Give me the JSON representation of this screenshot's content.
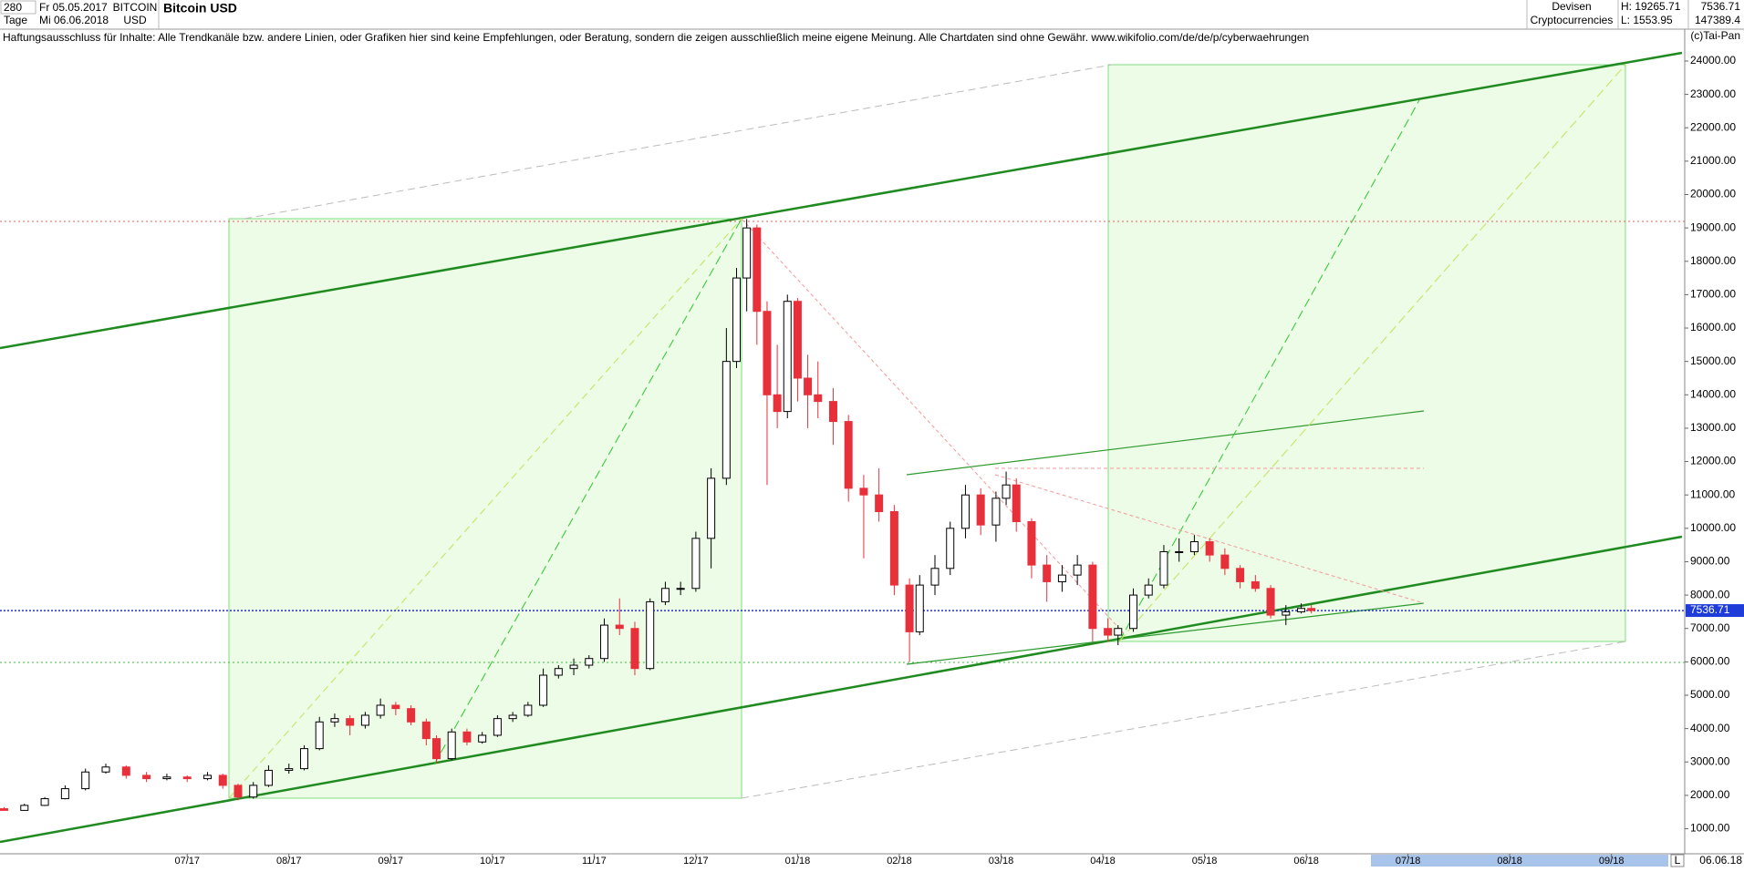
{
  "chart_data": {
    "type": "candlestick",
    "title": "Bitcoin USD",
    "toolbar": {
      "interval": "280",
      "unit": "Tage",
      "from": "Fr 05.05.2017",
      "to": "Mi 06.06.2018"
    },
    "symbol": "BITCOIN",
    "currency": "USD",
    "market": "Devisen",
    "category": "Cryptocurrencies",
    "high_label": "H: 19265.71",
    "low_label": "L: 1553.95",
    "volume": "147389.4",
    "disclaimer": "Haftungsausschluss für Inhalte: Alle Trendkanäle bzw. andere Linien, oder Grafiken hier sind keine Empfehlungen, oder Beratung, sondern die zeigen ausschließlich meine eigene Meinung. Alle Chartdaten sind ohne Gewähr.  www.wikifolio.com/de/de/p/cyberwaehrungen",
    "copyright": "(c)Tai-Pan",
    "date_label": "06.06.18",
    "scale_label": "L",
    "last_price": 7536.71,
    "xlim": [
      -1.84,
      14.72
    ],
    "ylim": [
      250,
      24900
    ],
    "xticks": [
      {
        "value": 0,
        "label": "07/17"
      },
      {
        "value": 1,
        "label": "08/17"
      },
      {
        "value": 2,
        "label": "09/17"
      },
      {
        "value": 3,
        "label": "10/17"
      },
      {
        "value": 4,
        "label": "11/17"
      },
      {
        "value": 5,
        "label": "12/17"
      },
      {
        "value": 6,
        "label": "01/18"
      },
      {
        "value": 7,
        "label": "02/18"
      },
      {
        "value": 8,
        "label": "03/18"
      },
      {
        "value": 9,
        "label": "04/18"
      },
      {
        "value": 10,
        "label": "05/18"
      },
      {
        "value": 11,
        "label": "06/18"
      },
      {
        "value": 12,
        "label": "07/18"
      },
      {
        "value": 13,
        "label": "08/18"
      },
      {
        "value": 14,
        "label": "09/18"
      }
    ],
    "yticks": [
      {
        "value": 1000,
        "label": "1000.00"
      },
      {
        "value": 2000,
        "label": "2000.00"
      },
      {
        "value": 3000,
        "label": "3000.00"
      },
      {
        "value": 4000,
        "label": "4000.00"
      },
      {
        "value": 5000,
        "label": "5000.00"
      },
      {
        "value": 6000,
        "label": "6000.00"
      },
      {
        "value": 7000,
        "label": "7000.00"
      },
      {
        "value": 8000,
        "label": "8000.00"
      },
      {
        "value": 9000,
        "label": "9000.00"
      },
      {
        "value": 10000,
        "label": "10000.00"
      },
      {
        "value": 11000,
        "label": "11000.00"
      },
      {
        "value": 12000,
        "label": "12000.00"
      },
      {
        "value": 13000,
        "label": "13000.00"
      },
      {
        "value": 14000,
        "label": "14000.00"
      },
      {
        "value": 15000,
        "label": "15000.00"
      },
      {
        "value": 16000,
        "label": "16000.00"
      },
      {
        "value": 17000,
        "label": "17000.00"
      },
      {
        "value": 18000,
        "label": "18000.00"
      },
      {
        "value": 19000,
        "label": "19000.00"
      },
      {
        "value": 20000,
        "label": "20000.00"
      },
      {
        "value": 21000,
        "label": "21000.00"
      },
      {
        "value": 22000,
        "label": "22000.00"
      },
      {
        "value": 23000,
        "label": "23000.00"
      },
      {
        "value": 24000,
        "label": "24000.00"
      }
    ],
    "up_color": "#ffffff",
    "down_color": "#e8303a",
    "candles": {
      "x": [
        -1.8,
        -1.6,
        -1.4,
        -1.2,
        -1.0,
        -0.8,
        -0.6,
        -0.4,
        -0.2,
        0.0,
        0.2,
        0.35,
        0.5,
        0.65,
        0.8,
        1.0,
        1.15,
        1.3,
        1.45,
        1.6,
        1.75,
        1.9,
        2.05,
        2.2,
        2.35,
        2.45,
        2.6,
        2.75,
        2.9,
        3.05,
        3.2,
        3.35,
        3.5,
        3.65,
        3.8,
        3.95,
        4.1,
        4.25,
        4.4,
        4.55,
        4.7,
        4.85,
        5.0,
        5.15,
        5.3,
        5.4,
        5.5,
        5.6,
        5.7,
        5.8,
        5.9,
        6.0,
        6.1,
        6.2,
        6.35,
        6.5,
        6.65,
        6.8,
        6.95,
        7.1,
        7.2,
        7.35,
        7.5,
        7.65,
        7.8,
        7.95,
        8.05,
        8.15,
        8.3,
        8.45,
        8.6,
        8.75,
        8.9,
        9.05,
        9.15,
        9.3,
        9.45,
        9.6,
        9.75,
        9.9,
        10.05,
        10.2,
        10.35,
        10.5,
        10.65,
        10.8,
        10.95,
        11.05
      ],
      "open": [
        1600,
        1550,
        1700,
        1900,
        2200,
        2700,
        2850,
        2600,
        2500,
        2550,
        2500,
        2600,
        2300,
        1950,
        2300,
        2750,
        2800,
        3400,
        4200,
        4300,
        4100,
        4400,
        4700,
        4600,
        4200,
        3700,
        3100,
        3900,
        3600,
        3800,
        4300,
        4400,
        4700,
        5600,
        5800,
        5900,
        6100,
        7100,
        7000,
        5800,
        7800,
        8200,
        8200,
        9700,
        11500,
        15000,
        17500,
        19000,
        16500,
        14000,
        13500,
        16800,
        14500,
        14000,
        13800,
        13200,
        11200,
        11000,
        10500,
        8300,
        6900,
        8300,
        8800,
        10000,
        11000,
        10100,
        10900,
        11300,
        10200,
        8900,
        8400,
        8600,
        8900,
        7000,
        6800,
        7000,
        8000,
        8300,
        9300,
        9300,
        9600,
        9200,
        8800,
        8400,
        8200,
        7400,
        7500,
        7600
      ],
      "high": [
        1650,
        1750,
        1950,
        2300,
        2800,
        2950,
        2900,
        2700,
        2650,
        2600,
        2700,
        2650,
        2350,
        2400,
        2900,
        2950,
        3500,
        4350,
        4450,
        4400,
        4500,
        4900,
        4800,
        4700,
        4300,
        3800,
        4000,
        4000,
        3900,
        4400,
        4500,
        4800,
        5800,
        5900,
        6100,
        6200,
        7300,
        7900,
        7200,
        7900,
        8400,
        8400,
        9900,
        11800,
        16000,
        17800,
        19265.71,
        19100,
        16800,
        15500,
        17000,
        16900,
        15200,
        15000,
        14200,
        13400,
        11600,
        11800,
        10700,
        8500,
        8600,
        9200,
        10200,
        11300,
        11200,
        11100,
        11700,
        11500,
        10300,
        9200,
        8900,
        9200,
        9000,
        7300,
        7100,
        8200,
        8500,
        9500,
        9700,
        9800,
        9700,
        9400,
        8900,
        8600,
        8300,
        7700,
        7750,
        7700
      ],
      "low": [
        1553.95,
        1540,
        1680,
        1880,
        2150,
        2650,
        2500,
        2400,
        2450,
        2400,
        2450,
        2200,
        1850,
        1900,
        2250,
        2650,
        2750,
        3350,
        4050,
        3800,
        4000,
        4300,
        4400,
        4100,
        3500,
        2950,
        3050,
        3500,
        3550,
        3750,
        4200,
        4350,
        4650,
        5500,
        5600,
        5800,
        6000,
        6800,
        5600,
        5750,
        7700,
        8000,
        8100,
        8800,
        11300,
        14800,
        16500,
        15500,
        11300,
        13000,
        13300,
        13800,
        13000,
        13300,
        12500,
        10800,
        9100,
        10200,
        8000,
        6000,
        6800,
        8000,
        8600,
        9700,
        9800,
        9600,
        10700,
        9900,
        8500,
        7800,
        8100,
        8300,
        6600,
        6600,
        6500,
        6900,
        7900,
        8200,
        9000,
        9200,
        9000,
        8600,
        8200,
        8100,
        7300,
        7100,
        7450,
        7450
      ],
      "close": [
        1550,
        1700,
        1900,
        2200,
        2700,
        2850,
        2600,
        2500,
        2550,
        2500,
        2600,
        2300,
        1950,
        2300,
        2750,
        2800,
        3400,
        4200,
        4300,
        4100,
        4400,
        4700,
        4600,
        4200,
        3700,
        3100,
        3900,
        3600,
        3800,
        4300,
        4400,
        4700,
        5600,
        5800,
        5900,
        6100,
        7100,
        7000,
        5800,
        7800,
        8200,
        8200,
        9700,
        11500,
        15000,
        17500,
        19000,
        16500,
        14000,
        13500,
        16800,
        14500,
        14000,
        13800,
        13200,
        11200,
        11000,
        10500,
        8300,
        6900,
        8300,
        8800,
        10000,
        11000,
        10100,
        10900,
        11300,
        10200,
        8900,
        8400,
        8600,
        8900,
        7000,
        6800,
        7000,
        8000,
        8300,
        9300,
        9300,
        9600,
        9200,
        8800,
        8400,
        8200,
        7400,
        7500,
        7600,
        7536.71
      ]
    }
  }
}
